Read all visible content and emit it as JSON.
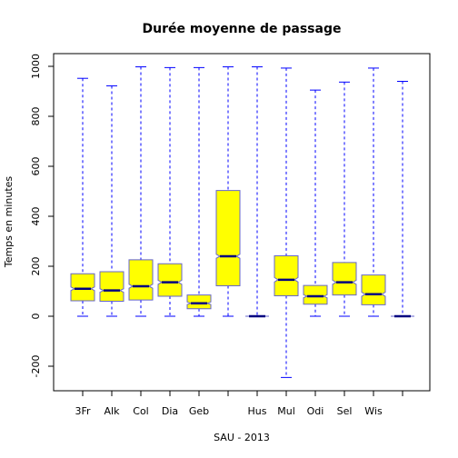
{
  "chart_data": {
    "type": "boxplot",
    "title": "Durée moyenne de passage",
    "xlabel": "SAU - 2013",
    "ylabel": "Temps en minutes",
    "ylim": [
      -300,
      1050
    ],
    "yticks": [
      -200,
      0,
      200,
      400,
      600,
      800,
      1000
    ],
    "notched": true,
    "colors": {
      "box_fill": "#ffff00",
      "box_border": "#6666cc",
      "whisker": "#0000ff",
      "median": "#000080",
      "axis": "#000000"
    },
    "boxes": [
      {
        "label": "3Fr",
        "min": 0,
        "q1": 62,
        "median": 110,
        "q3": 170,
        "max": 952,
        "notch_low": 103,
        "notch_high": 117
      },
      {
        "label": "Alk",
        "min": 0,
        "q1": 60,
        "median": 103,
        "q3": 178,
        "max": 922,
        "notch_low": 96,
        "notch_high": 110
      },
      {
        "label": "Col",
        "min": 0,
        "q1": 65,
        "median": 120,
        "q3": 226,
        "max": 998,
        "notch_low": 112,
        "notch_high": 128
      },
      {
        "label": "Dia",
        "min": 0,
        "q1": 80,
        "median": 136,
        "q3": 210,
        "max": 995,
        "notch_low": 128,
        "notch_high": 144
      },
      {
        "label": "Geb",
        "min": 0,
        "q1": 30,
        "median": 52,
        "q3": 85,
        "max": 995,
        "notch_low": 47,
        "notch_high": 57
      },
      {
        "label": "",
        "min": 0,
        "q1": 122,
        "median": 240,
        "q3": 503,
        "max": 998,
        "notch_low": 232,
        "notch_high": 248
      },
      {
        "label": "Hus",
        "min": 0,
        "q1": 0,
        "median": 0,
        "q3": 0,
        "max": 998,
        "notch_low": 0,
        "notch_high": 0
      },
      {
        "label": "Mul",
        "min": -245,
        "q1": 82,
        "median": 146,
        "q3": 242,
        "max": 993,
        "notch_low": 137,
        "notch_high": 155
      },
      {
        "label": "Odi",
        "min": 0,
        "q1": 48,
        "median": 80,
        "q3": 123,
        "max": 905,
        "notch_low": 74,
        "notch_high": 86
      },
      {
        "label": "Sel",
        "min": 0,
        "q1": 85,
        "median": 136,
        "q3": 215,
        "max": 937,
        "notch_low": 128,
        "notch_high": 144
      },
      {
        "label": "Wis",
        "min": 0,
        "q1": 46,
        "median": 88,
        "q3": 165,
        "max": 993,
        "notch_low": 80,
        "notch_high": 96
      },
      {
        "label": "",
        "min": 0,
        "q1": 0,
        "median": 0,
        "q3": 0,
        "max": 940,
        "notch_low": 0,
        "notch_high": 0
      }
    ]
  }
}
